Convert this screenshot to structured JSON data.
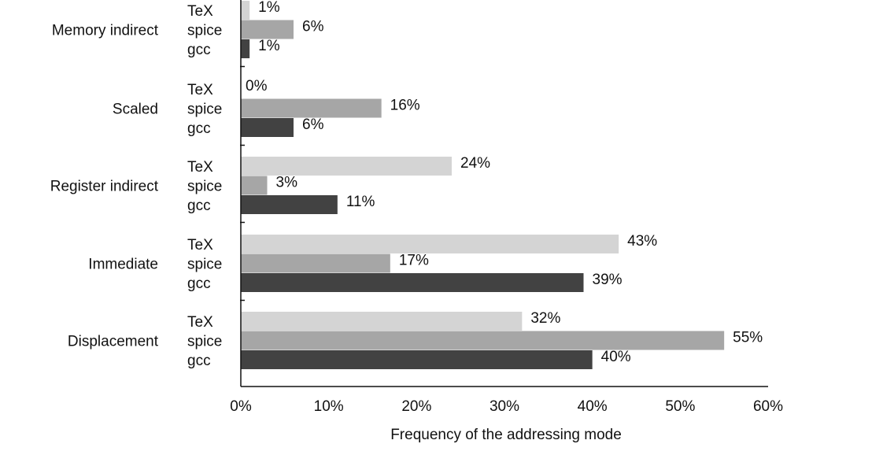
{
  "chart_data": {
    "type": "bar",
    "orientation": "horizontal",
    "xlabel": "Frequency of the addressing mode",
    "xlim": [
      0,
      60
    ],
    "xticks": [
      "0%",
      "10%",
      "20%",
      "30%",
      "40%",
      "50%",
      "60%"
    ],
    "grid": false,
    "categories": [
      "Memory indirect",
      "Scaled",
      "Register indirect",
      "Immediate",
      "Displacement"
    ],
    "series": [
      {
        "name": "TeX",
        "color": "#d4d4d4",
        "values": [
          1,
          0,
          24,
          43,
          32
        ],
        "labels": [
          "1%",
          "0%",
          "24%",
          "43%",
          "32%"
        ]
      },
      {
        "name": "spice",
        "color": "#a6a6a6",
        "values": [
          6,
          16,
          3,
          17,
          55
        ],
        "labels": [
          "6%",
          "16%",
          "3%",
          "17%",
          "55%"
        ]
      },
      {
        "name": "gcc",
        "color": "#424242",
        "values": [
          1,
          6,
          11,
          39,
          40
        ],
        "labels": [
          "1%",
          "6%",
          "11%",
          "39%",
          "40%"
        ]
      }
    ]
  }
}
